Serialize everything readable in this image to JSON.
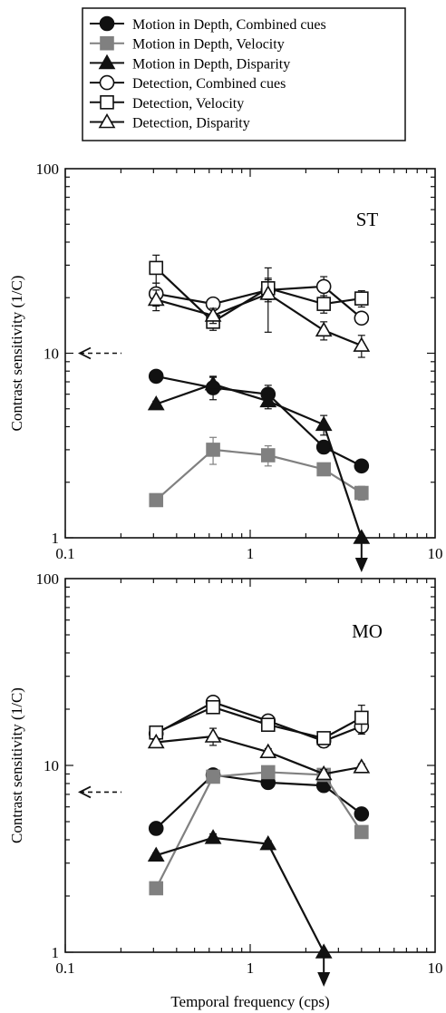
{
  "legend": [
    {
      "label": "Motion in Depth, Combined cues",
      "series_index": 0
    },
    {
      "label": "Motion in Depth, Velocity",
      "series_index": 1
    },
    {
      "label": "Motion in Depth, Disparity",
      "series_index": 2
    },
    {
      "label": "Detection, Combined cues",
      "series_index": 3
    },
    {
      "label": "Detection, Velocity",
      "series_index": 4
    },
    {
      "label": "Detection, Disparity",
      "series_index": 5
    }
  ],
  "styles": {
    "black": "#111111",
    "gray": "#808080",
    "white": "#ffffff"
  },
  "chart_data": [
    {
      "type": "line",
      "panel_label": "ST",
      "xscale": "log",
      "yscale": "log",
      "xlim": [
        0.1,
        10
      ],
      "ylim": [
        1,
        100
      ],
      "xticks": [
        "0.1",
        "1",
        "10"
      ],
      "yticks": [
        "1",
        "10",
        "100"
      ],
      "ylabel": "Contrast sensitivity (1/C)",
      "xlabel": "",
      "arrow_left_y": 10,
      "down_arrow_x": 4,
      "series": [
        {
          "name": "Motion in Depth, Combined cues",
          "marker": "circle",
          "fill": "black",
          "line": "black",
          "x": [
            0.31,
            0.63,
            1.25,
            2.5,
            4
          ],
          "y": [
            7.5,
            6.5,
            6.0,
            3.1,
            2.45
          ],
          "err": [
            0.3,
            0.9,
            0.7,
            0.2,
            0.1
          ]
        },
        {
          "name": "Motion in Depth, Velocity",
          "marker": "square",
          "fill": "gray",
          "line": "gray",
          "x": [
            0.31,
            0.63,
            1.25,
            2.5,
            4
          ],
          "y": [
            1.6,
            3.0,
            2.8,
            2.35,
            1.75
          ],
          "err": [
            0.05,
            0.5,
            0.35,
            0.15,
            0.15
          ]
        },
        {
          "name": "Motion in Depth, Disparity",
          "marker": "triangle",
          "fill": "black",
          "line": "black",
          "x": [
            0.31,
            0.63,
            1.25,
            2.5,
            4
          ],
          "y": [
            5.3,
            6.8,
            5.5,
            4.1,
            1.0
          ],
          "err": [
            0.2,
            0.7,
            0.5,
            0.5,
            0
          ]
        },
        {
          "name": "Detection, Combined cues",
          "marker": "circle",
          "fill": "white",
          "line": "black",
          "x": [
            0.31,
            0.63,
            1.25,
            2.5,
            4
          ],
          "y": [
            21,
            18.5,
            22,
            23,
            15.5
          ],
          "err": [
            3,
            1,
            3,
            3,
            1
          ]
        },
        {
          "name": "Detection, Velocity",
          "marker": "square",
          "fill": "white",
          "line": "black",
          "x": [
            0.31,
            0.63,
            1.25,
            2.5,
            4
          ],
          "y": [
            29,
            14.8,
            22.5,
            18.5,
            19.8
          ],
          "err": [
            5,
            1.5,
            3,
            2,
            2
          ]
        },
        {
          "name": "Detection, Disparity",
          "marker": "triangle",
          "fill": "white",
          "line": "black",
          "x": [
            0.31,
            0.63,
            1.25,
            2.5,
            4
          ],
          "y": [
            19.5,
            16,
            21,
            13.3,
            11
          ],
          "err": [
            2.5,
            1.5,
            8,
            1.5,
            1.5
          ]
        }
      ]
    },
    {
      "type": "line",
      "panel_label": "MO",
      "xscale": "log",
      "yscale": "log",
      "xlim": [
        0.1,
        10
      ],
      "ylim": [
        1,
        100
      ],
      "xticks": [
        "0.1",
        "1",
        "10"
      ],
      "yticks": [
        "1",
        "10",
        "100"
      ],
      "ylabel": "Contrast sensitivity (1/C)",
      "xlabel": "Temporal frequency (cps)",
      "arrow_left_y": 7.2,
      "down_arrow_x": 2.5,
      "series": [
        {
          "name": "Motion in Depth, Combined cues",
          "marker": "circle",
          "fill": "black",
          "line": "black",
          "x": [
            0.31,
            0.63,
            1.25,
            2.5,
            4
          ],
          "y": [
            4.6,
            8.9,
            8.1,
            7.8,
            5.5
          ],
          "err": [
            0,
            0.4,
            0.3,
            0.3,
            0.2
          ]
        },
        {
          "name": "Motion in Depth, Velocity",
          "marker": "square",
          "fill": "gray",
          "line": "gray",
          "x": [
            0.31,
            0.63,
            1.25,
            2.5,
            4
          ],
          "y": [
            2.2,
            8.7,
            9.2,
            8.9,
            4.4
          ],
          "err": [
            0.05,
            0.4,
            0.4,
            0.3,
            0.2
          ]
        },
        {
          "name": "Motion in Depth, Disparity",
          "marker": "triangle",
          "fill": "black",
          "line": "black",
          "x": [
            0.31,
            0.63,
            1.25,
            2.5
          ],
          "y": [
            3.3,
            4.1,
            3.8,
            1.0
          ],
          "err": [
            0.1,
            0.2,
            0.15,
            0
          ]
        },
        {
          "name": "Detection, Combined cues",
          "marker": "circle",
          "fill": "white",
          "line": "black",
          "x": [
            0.31,
            0.63,
            1.25,
            2.5,
            4
          ],
          "y": [
            14.8,
            21.8,
            17.3,
            13.5,
            16.2
          ],
          "err": [
            1,
            1,
            1,
            1,
            1.5
          ]
        },
        {
          "name": "Detection, Velocity",
          "marker": "square",
          "fill": "white",
          "line": "black",
          "x": [
            0.31,
            0.63,
            1.25,
            2.5,
            4
          ],
          "y": [
            15.0,
            20.5,
            16.5,
            14.0,
            18.0
          ],
          "err": [
            1,
            1.5,
            1,
            1,
            3
          ]
        },
        {
          "name": "Detection, Disparity",
          "marker": "triangle",
          "fill": "white",
          "line": "black",
          "x": [
            0.31,
            0.63,
            1.25,
            2.5,
            4
          ],
          "y": [
            13.3,
            14.3,
            11.8,
            9.0,
            9.8
          ],
          "err": [
            0.5,
            1.5,
            0.5,
            0.5,
            0.4
          ]
        }
      ]
    }
  ]
}
